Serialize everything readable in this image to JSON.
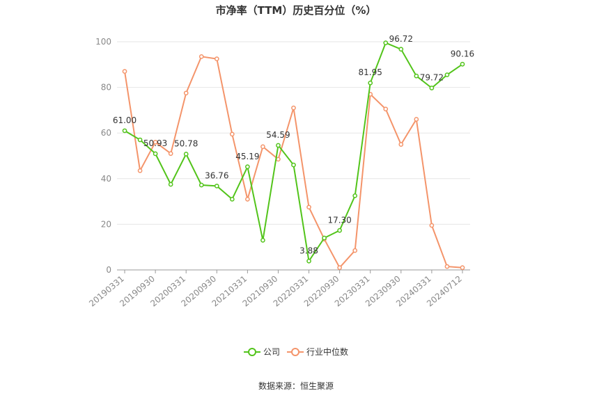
{
  "chart_data": {
    "type": "line",
    "title": "市净率（TTM）历史百分位（%）",
    "source": "数据来源：恒生聚源",
    "ylim": [
      0,
      100
    ],
    "yticks": [
      0,
      20,
      40,
      60,
      80,
      100
    ],
    "xtick_labels": [
      "20190331",
      "20190930",
      "20200331",
      "20200930",
      "20210331",
      "20210930",
      "20220331",
      "20220930",
      "20230331",
      "20230930",
      "20240331",
      "20240712"
    ],
    "xtick_indices": [
      0,
      2,
      4,
      6,
      8,
      10,
      12,
      14,
      16,
      18,
      20,
      22
    ],
    "grid": true,
    "legend_position": "bottom",
    "series": [
      {
        "name": "公司",
        "color": "#52c41a",
        "values": [
          61.0,
          57.0,
          50.93,
          37.5,
          50.78,
          37.2,
          36.76,
          31.0,
          45.19,
          13.0,
          54.59,
          46.0,
          3.88,
          14.0,
          17.3,
          32.5,
          81.95,
          99.5,
          96.72,
          85.0,
          79.72,
          85.5,
          90.16
        ],
        "labels": {
          "0": "61.00",
          "2": "50.93",
          "4": "50.78",
          "6": "36.76",
          "8": "45.19",
          "10": "54.59",
          "12": "3.88",
          "14": "17.30",
          "16": "81.95",
          "18": "96.72",
          "20": "79.72",
          "22": "90.16"
        }
      },
      {
        "name": "行业中位数",
        "color": "#f4946a",
        "values": [
          87.0,
          43.5,
          56.0,
          51.0,
          77.5,
          93.5,
          92.5,
          59.5,
          31.0,
          54.0,
          48.5,
          71.0,
          27.5,
          13.5,
          1.0,
          8.5,
          77.0,
          70.5,
          55.0,
          66.0,
          19.5,
          1.5,
          1.0
        ]
      }
    ]
  }
}
